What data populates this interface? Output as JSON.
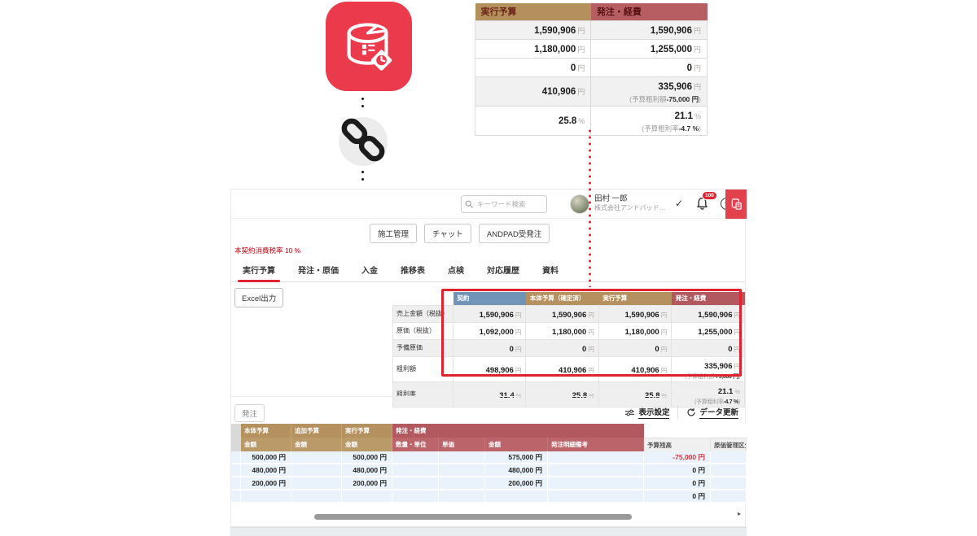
{
  "palette": {
    "accent_red": "#e0232e",
    "tan": "#b4915f",
    "maroon": "#b2595f",
    "blue": "#6f94b5",
    "row_blue": "#eaf3fb",
    "negative": "#d6313b",
    "app_red": "#ea3a4b"
  },
  "icons": {
    "app": "budget-database-app-icon",
    "link": "link-chain-icon",
    "search": "search-icon",
    "bell": "bell-icon",
    "check": "check-icon",
    "help": "help-icon",
    "red_app": "document-calculator-icon",
    "sliders": "sliders-icon",
    "refresh": "refresh-icon"
  },
  "floating_table": {
    "headers": [
      {
        "label": "実行予算",
        "type": "tan"
      },
      {
        "label": "発注・経費",
        "type": "red"
      }
    ],
    "rows": [
      {
        "shade": true,
        "left": {
          "v": "1,590,906",
          "u": "円"
        },
        "right": {
          "v": "1,590,906",
          "u": "円"
        }
      },
      {
        "left": {
          "v": "1,180,000",
          "u": "円"
        },
        "right": {
          "v": "1,255,000",
          "u": "円"
        }
      },
      {
        "left": {
          "v": "0",
          "u": "円"
        },
        "right": {
          "v": "0",
          "u": "円"
        }
      },
      {
        "shade": true,
        "left": {
          "v": "410,906",
          "u": "円"
        },
        "right": {
          "v": "335,906",
          "u": "円",
          "subLabel": "予算粗利額",
          "subValue": "-75,000 円"
        }
      },
      {
        "left": {
          "v": "25.8",
          "u": "%"
        },
        "right": {
          "v": "21.1",
          "u": "%",
          "subLabel": "予算粗利率",
          "subValue": "-4.7 %"
        }
      }
    ]
  },
  "header": {
    "search_placeholder": "キーワード検索",
    "user_name": "田村 一郎",
    "company": "株式会社アンドパッド…",
    "check": "✓",
    "notification_count": "100",
    "help": "?"
  },
  "nav_buttons": [
    {
      "label": "施工管理"
    },
    {
      "label": "チャット"
    },
    {
      "label": "ANDPAD受発注"
    }
  ],
  "tax_note": "本契約消費税率 10 %",
  "tabs": [
    {
      "label": "実行予算",
      "active": true
    },
    {
      "label": "発注・原価"
    },
    {
      "label": "入金"
    },
    {
      "label": "推移表"
    },
    {
      "label": "点検"
    },
    {
      "label": "対応履歴"
    },
    {
      "label": "資料"
    }
  ],
  "excel_button": "Excel出力",
  "summary_table": {
    "columns": [
      {
        "label": "契約",
        "color": "blue"
      },
      {
        "label": "本体予算（確定済）",
        "color": "tan"
      },
      {
        "label": "実行予算",
        "color": "tan"
      },
      {
        "label": "発注・経費",
        "color": "red"
      }
    ],
    "rows": [
      {
        "shade": true,
        "label": "売上金額（税抜）",
        "cells": [
          {
            "v": "1,590,906",
            "u": "円"
          },
          {
            "v": "1,590,906",
            "u": "円"
          },
          {
            "v": "1,590,906",
            "u": "円"
          },
          {
            "v": "1,590,906",
            "u": "円"
          }
        ]
      },
      {
        "label": "原価（税抜）",
        "cells": [
          {
            "v": "1,092,000",
            "u": "円"
          },
          {
            "v": "1,180,000",
            "u": "円"
          },
          {
            "v": "1,180,000",
            "u": "円"
          },
          {
            "v": "1,255,000",
            "u": "円"
          }
        ]
      },
      {
        "shade": true,
        "label": "予備原価",
        "cells": [
          {
            "v": "0",
            "u": "円"
          },
          {
            "v": "0",
            "u": "円"
          },
          {
            "v": "0",
            "u": "円"
          },
          {
            "v": "0",
            "u": "円"
          }
        ]
      },
      {
        "label": "粗利額",
        "cells": [
          {
            "v": "498,906",
            "u": "円"
          },
          {
            "v": "410,906",
            "u": "円"
          },
          {
            "v": "410,906",
            "u": "円"
          },
          {
            "v": "335,906",
            "u": "円",
            "subLabel": "予算粗利額",
            "subValue": "-75,000 円"
          }
        ]
      },
      {
        "shade": true,
        "label": "粗利率",
        "cells": [
          {
            "v": "31.4",
            "u": "%"
          },
          {
            "v": "25.8",
            "u": "%"
          },
          {
            "v": "25.8",
            "u": "%"
          },
          {
            "v": "21.1",
            "u": "%",
            "subLabel": "予算粗利率",
            "subValue": "-4.7 %"
          }
        ]
      }
    ]
  },
  "orders": {
    "title": "発注",
    "display_settings": "表示設定",
    "refresh": "データ更新",
    "groups": [
      {
        "label": "本体予算",
        "color": "tan",
        "span": 1
      },
      {
        "label": "追加予算",
        "color": "tan",
        "span": 1
      },
      {
        "label": "実行予算",
        "color": "tan",
        "span": 1
      },
      {
        "label": "発注・経費",
        "color": "red",
        "span": 4
      }
    ],
    "sub_headers": [
      {
        "label": "金額",
        "color": "tan2"
      },
      {
        "label": "金額",
        "color": "tan2"
      },
      {
        "label": "金額",
        "color": "tan2"
      },
      {
        "label": "数量・単位",
        "color": "red2"
      },
      {
        "label": "単価",
        "color": "red2"
      },
      {
        "label": "金額",
        "color": "red2"
      },
      {
        "label": "発注明細備考",
        "color": "red2"
      },
      {
        "label": "予算残高",
        "color": "gray"
      },
      {
        "label": "原価管理区分",
        "color": "gray"
      }
    ],
    "rows": [
      [
        "500,000 円",
        "",
        "500,000 円",
        "",
        "",
        "575,000 円",
        "",
        "-75,000 円",
        ""
      ],
      [
        "480,000 円",
        "",
        "480,000 円",
        "",
        "",
        "480,000 円",
        "",
        "0 円",
        ""
      ],
      [
        "200,000 円",
        "",
        "200,000 円",
        "",
        "",
        "200,000 円",
        "",
        "0 円",
        ""
      ],
      [
        "",
        "",
        "",
        "",
        "",
        "",
        "",
        "0 円",
        ""
      ]
    ]
  }
}
